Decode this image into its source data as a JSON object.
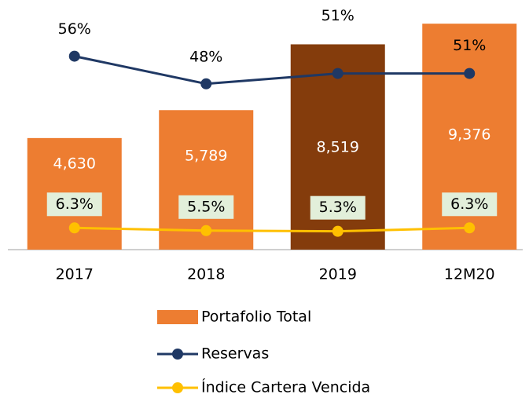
{
  "chart_data": {
    "type": "bar",
    "categories": [
      "2017",
      "2018",
      "2019",
      "12M20"
    ],
    "series": [
      {
        "name": "Portafolio Total",
        "type": "bar",
        "color": "#ed7d31",
        "colors": [
          "#ed7d31",
          "#ed7d31",
          "#843c0c",
          "#ed7d31"
        ],
        "values": [
          4630,
          5789,
          8519,
          9376
        ],
        "value_labels": [
          "4,630",
          "5,789",
          "8,519",
          "9,376"
        ]
      },
      {
        "name": "Reservas",
        "type": "line",
        "color": "#1f3864",
        "values": [
          56,
          48,
          51,
          51
        ],
        "value_labels": [
          "56%",
          "48%",
          "51%",
          "51%"
        ]
      },
      {
        "name": "Índice Cartera Vencida",
        "type": "line",
        "color": "#ffc000",
        "values": [
          6.3,
          5.5,
          5.3,
          6.3
        ],
        "value_labels": [
          "6.3%",
          "5.5%",
          "5.3%",
          "6.3%"
        ]
      }
    ]
  }
}
